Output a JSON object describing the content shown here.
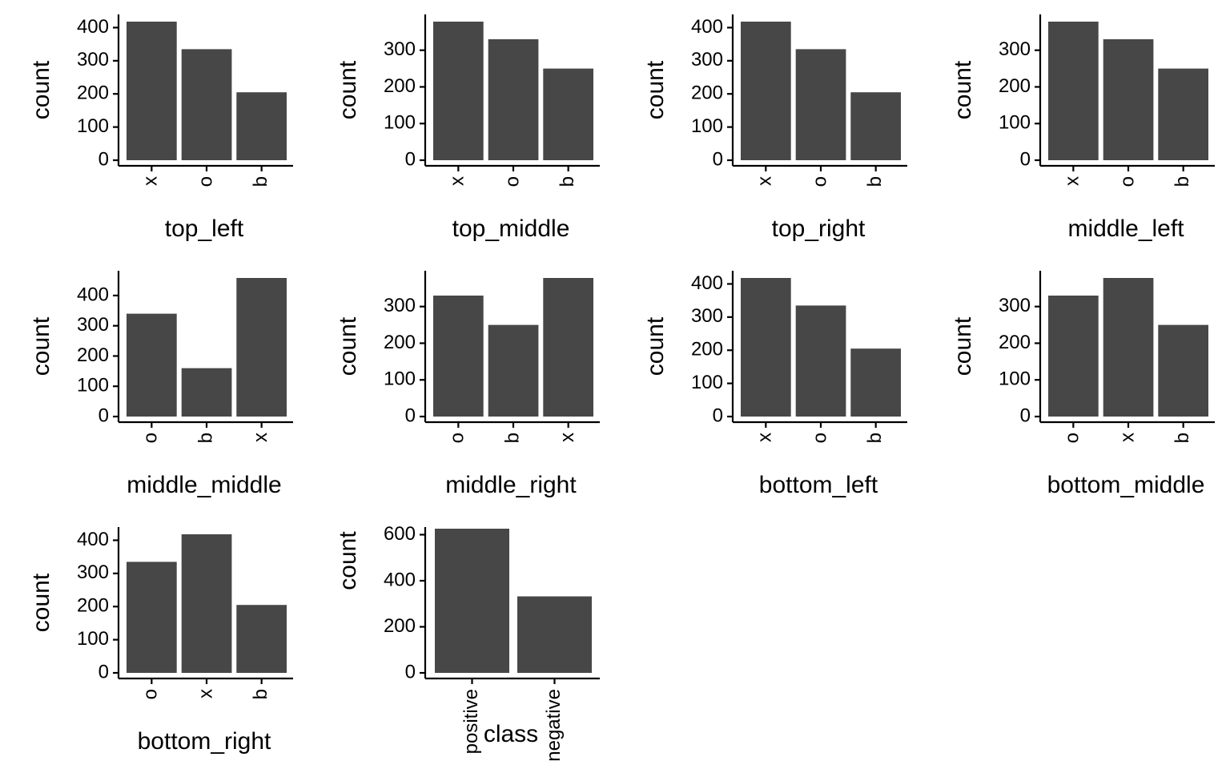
{
  "colors": {
    "bar": "#474747",
    "axis": "#000000",
    "background": "#ffffff"
  },
  "chart_data": [
    {
      "type": "bar",
      "xlabel": "top_left",
      "ylabel": "count",
      "categories": [
        "x",
        "o",
        "b"
      ],
      "values": [
        418,
        335,
        205
      ],
      "ylim": [
        0,
        418
      ],
      "yticks": [
        0,
        100,
        200,
        300,
        400
      ],
      "grid": false,
      "legend": "none"
    },
    {
      "type": "bar",
      "xlabel": "top_middle",
      "ylabel": "count",
      "categories": [
        "x",
        "o",
        "b"
      ],
      "values": [
        378,
        330,
        250
      ],
      "ylim": [
        0,
        378
      ],
      "yticks": [
        0,
        100,
        200,
        300
      ],
      "grid": false,
      "legend": "none"
    },
    {
      "type": "bar",
      "xlabel": "top_right",
      "ylabel": "count",
      "categories": [
        "x",
        "o",
        "b"
      ],
      "values": [
        418,
        335,
        205
      ],
      "ylim": [
        0,
        418
      ],
      "yticks": [
        0,
        100,
        200,
        300,
        400
      ],
      "grid": false,
      "legend": "none"
    },
    {
      "type": "bar",
      "xlabel": "middle_left",
      "ylabel": "count",
      "categories": [
        "x",
        "o",
        "b"
      ],
      "values": [
        378,
        330,
        250
      ],
      "ylim": [
        0,
        378
      ],
      "yticks": [
        0,
        100,
        200,
        300
      ],
      "grid": false,
      "legend": "none"
    },
    {
      "type": "bar",
      "xlabel": "middle_middle",
      "ylabel": "count",
      "categories": [
        "o",
        "b",
        "x"
      ],
      "values": [
        340,
        160,
        458
      ],
      "ylim": [
        0,
        458
      ],
      "yticks": [
        0,
        100,
        200,
        300,
        400
      ],
      "grid": false,
      "legend": "none"
    },
    {
      "type": "bar",
      "xlabel": "middle_right",
      "ylabel": "count",
      "categories": [
        "o",
        "b",
        "x"
      ],
      "values": [
        330,
        250,
        378
      ],
      "ylim": [
        0,
        378
      ],
      "yticks": [
        0,
        100,
        200,
        300
      ],
      "grid": false,
      "legend": "none"
    },
    {
      "type": "bar",
      "xlabel": "bottom_left",
      "ylabel": "count",
      "categories": [
        "x",
        "o",
        "b"
      ],
      "values": [
        418,
        335,
        205
      ],
      "ylim": [
        0,
        418
      ],
      "yticks": [
        0,
        100,
        200,
        300,
        400
      ],
      "grid": false,
      "legend": "none"
    },
    {
      "type": "bar",
      "xlabel": "bottom_middle",
      "ylabel": "count",
      "categories": [
        "o",
        "x",
        "b"
      ],
      "values": [
        330,
        378,
        250
      ],
      "ylim": [
        0,
        378
      ],
      "yticks": [
        0,
        100,
        200,
        300
      ],
      "grid": false,
      "legend": "none"
    },
    {
      "type": "bar",
      "xlabel": "bottom_right",
      "ylabel": "count",
      "categories": [
        "o",
        "x",
        "b"
      ],
      "values": [
        335,
        418,
        205
      ],
      "ylim": [
        0,
        418
      ],
      "yticks": [
        0,
        100,
        200,
        300,
        400
      ],
      "grid": false,
      "legend": "none"
    },
    {
      "type": "bar",
      "xlabel": "class",
      "ylabel": "count",
      "categories": [
        "positive",
        "negative"
      ],
      "values": [
        626,
        332
      ],
      "ylim": [
        0,
        626
      ],
      "yticks": [
        0,
        200,
        400,
        600
      ],
      "grid": false,
      "legend": "none"
    }
  ]
}
